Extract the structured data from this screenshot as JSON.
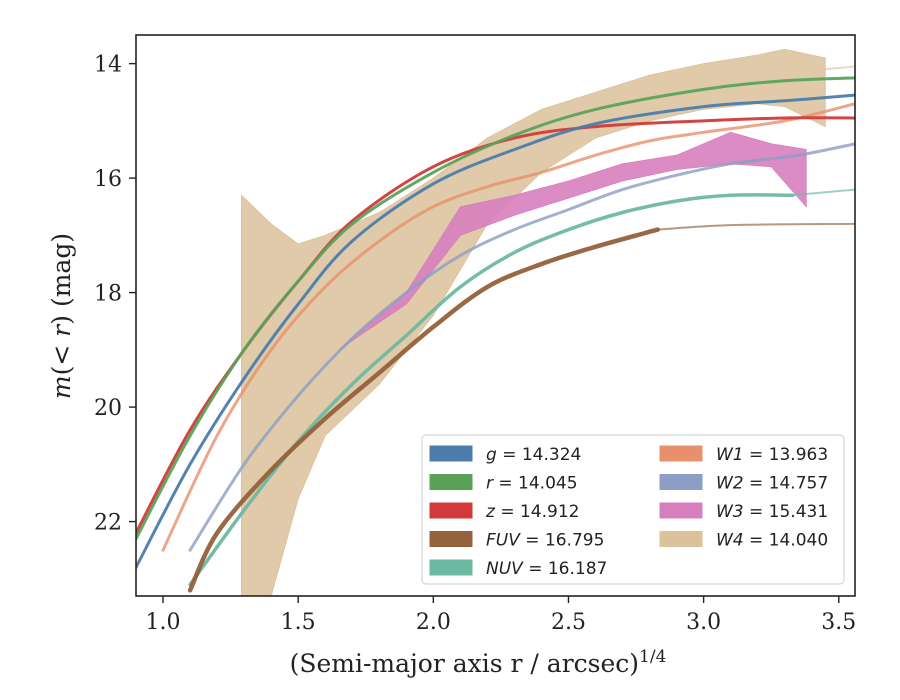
{
  "chart_data": {
    "type": "line",
    "xlabel": "(Semi-major axis r / arcsec)",
    "xlabel_superscript": "1/4",
    "ylabel_prefix": "m(",
    "ylabel_italic": "< r",
    "ylabel_suffix": ") (mag)",
    "xlim": [
      0.9,
      3.56
    ],
    "ylim": [
      23.3,
      13.5
    ],
    "y_inverted": true,
    "grid": false,
    "legend_position": "lower-right",
    "legend_columns": 2,
    "x_ticks": [
      1.0,
      1.5,
      2.0,
      2.5,
      3.0,
      3.5
    ],
    "x_tick_labels": [
      "1.0",
      "1.5",
      "2.0",
      "2.5",
      "3.0",
      "3.5"
    ],
    "y_ticks": [
      14,
      16,
      18,
      20,
      22
    ],
    "y_tick_labels": [
      "14",
      "16",
      "18",
      "20",
      "22"
    ],
    "series": [
      {
        "name": "g",
        "label": "g = 14.324",
        "color": "#4c7cab",
        "style": "line",
        "x": [
          0.9,
          1.1,
          1.3,
          1.5,
          1.7,
          2.0,
          2.3,
          2.6,
          3.0,
          3.3,
          3.56
        ],
        "y": [
          22.8,
          21.0,
          19.5,
          18.2,
          17.1,
          16.1,
          15.5,
          15.05,
          14.75,
          14.65,
          14.55
        ]
      },
      {
        "name": "r",
        "label": "r = 14.045",
        "color": "#5aa25a",
        "style": "line",
        "x": [
          0.9,
          1.1,
          1.3,
          1.5,
          1.7,
          2.0,
          2.3,
          2.6,
          3.0,
          3.3,
          3.56
        ],
        "y": [
          22.3,
          20.5,
          19.0,
          17.8,
          16.8,
          15.9,
          15.25,
          14.8,
          14.45,
          14.3,
          14.25
        ]
      },
      {
        "name": "z",
        "label": "z = 14.912",
        "color": "#d13a3a",
        "style": "line",
        "x": [
          0.9,
          1.1,
          1.3,
          1.5,
          1.7,
          2.0,
          2.3,
          2.6,
          3.0,
          3.3,
          3.56
        ],
        "y": [
          22.2,
          20.4,
          19.0,
          17.8,
          16.75,
          15.8,
          15.3,
          15.1,
          15.0,
          14.95,
          14.95
        ]
      },
      {
        "name": "FUV",
        "label": "FUV = 16.795",
        "color": "#94613c",
        "style": "line",
        "x": [
          1.1,
          1.2,
          1.4,
          1.6,
          1.8,
          2.0,
          2.2,
          2.4,
          2.6,
          2.83
        ],
        "y": [
          23.2,
          22.2,
          21.1,
          20.2,
          19.4,
          18.6,
          17.9,
          17.5,
          17.2,
          16.9
        ],
        "x_faint": [
          2.83,
          3.1,
          3.56
        ],
        "y_faint": [
          16.9,
          16.82,
          16.8
        ]
      },
      {
        "name": "NUV",
        "label": "NUV = 16.187",
        "color": "#6db8a1",
        "style": "line",
        "x": [
          1.1,
          1.3,
          1.5,
          1.7,
          1.9,
          2.1,
          2.3,
          2.5,
          2.7,
          2.9,
          3.1,
          3.33
        ],
        "y": [
          23.1,
          21.8,
          20.6,
          19.6,
          18.75,
          17.9,
          17.3,
          16.9,
          16.6,
          16.4,
          16.3,
          16.3
        ],
        "x_faint": [
          3.33,
          3.56
        ],
        "y_faint": [
          16.3,
          16.2
        ]
      },
      {
        "name": "W1",
        "label": "W1 = 13.963",
        "color": "#e8906c",
        "style": "line",
        "x": [
          1.0,
          1.2,
          1.4,
          1.6,
          1.8,
          2.0,
          2.2,
          2.4,
          2.6,
          2.8,
          3.0,
          3.3,
          3.56
        ],
        "y": [
          22.5,
          20.5,
          19.0,
          17.9,
          17.1,
          16.5,
          16.15,
          15.9,
          15.6,
          15.35,
          15.2,
          15.0,
          14.7
        ]
      },
      {
        "name": "W2",
        "label": "W2 = 14.757",
        "color": "#8c9dc6",
        "style": "line",
        "x": [
          1.1,
          1.3,
          1.5,
          1.7,
          1.9,
          2.1,
          2.3,
          2.5,
          2.7,
          2.9,
          3.1,
          3.35,
          3.56
        ],
        "y": [
          22.5,
          21.0,
          19.8,
          18.8,
          18.0,
          17.35,
          16.9,
          16.55,
          16.2,
          15.95,
          15.75,
          15.6,
          15.4
        ]
      },
      {
        "name": "W3",
        "label": "W3 = 15.431",
        "color": "#d77fbe",
        "style": "band",
        "x": [
          1.65,
          1.9,
          2.1,
          2.3,
          2.5,
          2.7,
          2.9,
          3.1,
          3.25,
          3.38
        ],
        "y_low": [
          19.0,
          18.2,
          17.0,
          16.65,
          16.35,
          16.05,
          15.85,
          15.75,
          15.8,
          16.5
        ],
        "y_high": [
          19.0,
          18.0,
          16.5,
          16.3,
          16.05,
          15.75,
          15.6,
          15.2,
          15.4,
          15.5
        ]
      },
      {
        "name": "W4",
        "label": "W4 = 14.040",
        "color": "#dcc19a",
        "style": "band",
        "x": [
          1.29,
          1.4,
          1.5,
          1.6,
          1.8,
          2.0,
          2.2,
          2.4,
          2.6,
          2.8,
          3.0,
          3.2,
          3.3,
          3.45
        ],
        "y_low": [
          23.3,
          23.3,
          21.6,
          20.5,
          19.6,
          18.4,
          16.8,
          15.9,
          15.3,
          15.0,
          14.8,
          14.7,
          14.75,
          15.1
        ],
        "y_high": [
          16.3,
          16.8,
          17.15,
          17.0,
          16.6,
          16.0,
          15.3,
          14.8,
          14.5,
          14.2,
          14.0,
          13.85,
          13.75,
          13.9
        ],
        "x_faint": [
          3.45,
          3.56
        ],
        "y_faint": [
          14.1,
          14.05
        ]
      }
    ]
  },
  "legend": {
    "entries": [
      {
        "name": "g",
        "value": "14.324",
        "color": "#4c7cab"
      },
      {
        "name": "r",
        "value": "14.045",
        "color": "#5aa25a"
      },
      {
        "name": "z",
        "value": "14.912",
        "color": "#d13a3a"
      },
      {
        "name": "FUV",
        "value": "16.795",
        "color": "#94613c"
      },
      {
        "name": "NUV",
        "value": "16.187",
        "color": "#6db8a1"
      },
      {
        "name": "W1",
        "value": "13.963",
        "color": "#e8906c"
      },
      {
        "name": "W2",
        "value": "14.757",
        "color": "#8c9dc6"
      },
      {
        "name": "W3",
        "value": "15.431",
        "color": "#d77fbe"
      },
      {
        "name": "W4",
        "value": "14.040",
        "color": "#dcc19a"
      }
    ]
  }
}
